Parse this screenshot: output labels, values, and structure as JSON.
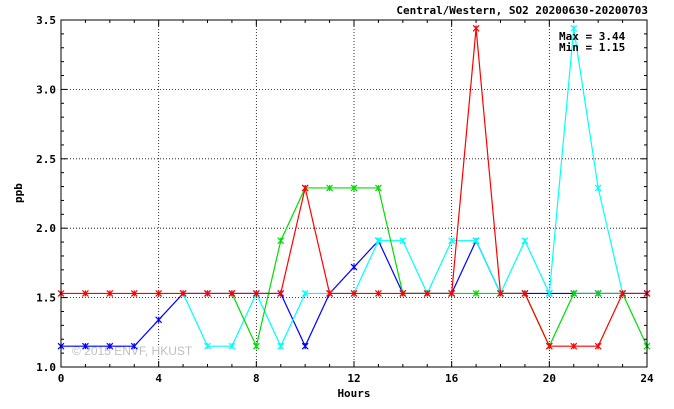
{
  "chart_data": {
    "type": "line",
    "title": "Central/Western, SO2 20200630-20200703",
    "xlabel": "Hours",
    "ylabel": "ppb",
    "xlim": [
      0,
      24
    ],
    "ylim": [
      1.0,
      3.5
    ],
    "xticks": [
      0,
      4,
      8,
      12,
      16,
      20,
      24
    ],
    "yticks": [
      1.0,
      1.5,
      2.0,
      2.5,
      3.0,
      3.5
    ],
    "annotations": [
      "Max = 3.44",
      "Min = 1.15"
    ],
    "watermark": "© 2015 ENVF, HKUST",
    "grid": true,
    "x": [
      0,
      1,
      2,
      3,
      4,
      5,
      6,
      7,
      8,
      9,
      10,
      11,
      12,
      13,
      14,
      15,
      16,
      17,
      18,
      19,
      20,
      21,
      22,
      23,
      24
    ],
    "series": [
      {
        "color": "#0000ff",
        "values": [
          1.15,
          1.15,
          1.15,
          1.15,
          1.34,
          1.53,
          1.53,
          1.53,
          1.53,
          1.53,
          1.15,
          1.53,
          1.72,
          1.91,
          1.53,
          1.53,
          1.53,
          1.91,
          1.53,
          1.53,
          1.53,
          1.53,
          1.53,
          1.53,
          1.53
        ]
      },
      {
        "color": "#00ffff",
        "values": [
          null,
          null,
          null,
          null,
          null,
          1.53,
          1.15,
          1.15,
          1.53,
          1.15,
          1.53,
          1.53,
          1.53,
          1.91,
          1.91,
          1.53,
          1.91,
          1.91,
          1.53,
          1.91,
          1.53,
          3.44,
          2.29,
          1.53,
          null
        ]
      },
      {
        "color": "#00dd00",
        "values": [
          null,
          null,
          null,
          null,
          null,
          null,
          null,
          1.53,
          1.15,
          1.91,
          2.29,
          2.29,
          2.29,
          2.29,
          1.53,
          1.53,
          1.53,
          1.53,
          1.53,
          1.53,
          1.15,
          1.53,
          1.53,
          1.53,
          1.15
        ]
      },
      {
        "color": "#ff0000",
        "values": [
          1.53,
          1.53,
          1.53,
          1.53,
          1.53,
          1.53,
          1.53,
          1.53,
          1.53,
          1.53,
          2.29,
          1.53,
          1.53,
          1.53,
          1.53,
          1.53,
          1.53,
          3.44,
          1.53,
          1.53,
          1.15,
          1.15,
          1.15,
          1.53,
          1.53
        ]
      }
    ]
  }
}
